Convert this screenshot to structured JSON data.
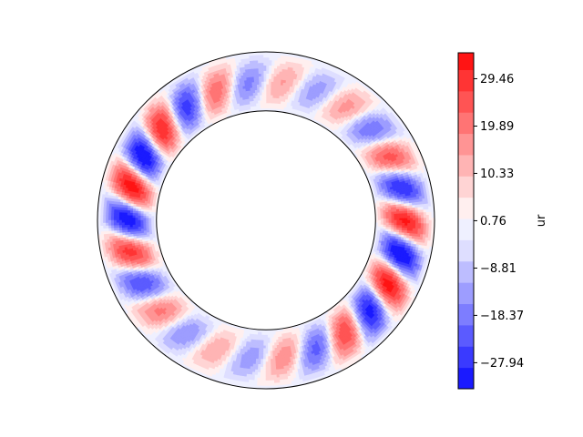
{
  "chart_data": {
    "type": "heatmap",
    "subtype": "polar-annulus-contour",
    "title": "",
    "colorbar": {
      "label": "ur",
      "cmap": "bwr",
      "range": [
        -33.2,
        34.7
      ],
      "levels": [
        -33.2,
        -28.9,
        -24.6,
        -20.3,
        -16.0,
        -11.7,
        -7.4,
        -3.1,
        1.2,
        5.5,
        9.8,
        14.1,
        18.4,
        22.7,
        27.0,
        31.3,
        34.7
      ],
      "ticks": [
        29.46,
        19.89,
        10.33,
        0.76,
        -8.81,
        -18.37,
        -27.94
      ],
      "tick_labels": [
        "29.46",
        "19.89",
        "10.33",
        "0.76",
        "−8.81",
        "−18.37",
        "−27.94"
      ],
      "colors": [
        "#1a1aff",
        "#3a3aff",
        "#5b5bff",
        "#7d7dff",
        "#9d9dff",
        "#bdbdff",
        "#dedeff",
        "#eff0ff",
        "#ffefef",
        "#ffd4d4",
        "#ffb4b4",
        "#ff9494",
        "#ff7474",
        "#ff5454",
        "#ff3434",
        "#ff1414"
      ]
    },
    "domain": {
      "inner_radius_ratio": 0.65,
      "outer_radius_ratio": 1.0,
      "azimuthal_cells": 26,
      "pattern": "alternating positive and negative radial-velocity rolls tilted in azimuth"
    },
    "colors": {
      "positive_line": "#000000",
      "negative_line": "#000000",
      "boundary": "#000000"
    }
  }
}
